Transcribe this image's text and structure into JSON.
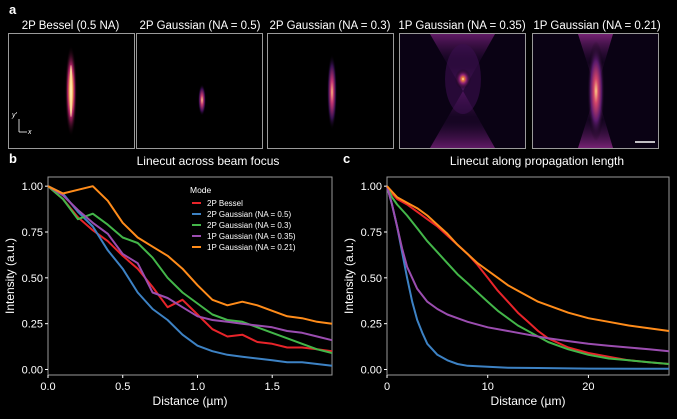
{
  "panel_labels": {
    "a": "a",
    "b": "b",
    "c": "c"
  },
  "images": {
    "tiles": [
      {
        "title": "2P Bessel (0.5 NA)",
        "profile": "bessel"
      },
      {
        "title": "2P Gaussian (NA = 0.5)",
        "profile": "gauss-small"
      },
      {
        "title": "2P Gaussian (NA = 0.3)",
        "profile": "gauss-med"
      },
      {
        "title": "1P Gaussian (NA = 0.35)",
        "profile": "1p-035"
      },
      {
        "title": "1P Gaussian (NA = 0.21)",
        "profile": "1p-021"
      }
    ],
    "axis_y": "y'",
    "axis_x": "x"
  },
  "colors": {
    "2P Bessel": "#e8242a",
    "2P Gaussian (NA = 0.5)": "#3d82c4",
    "2P Gaussian (NA = 0.3)": "#43b649",
    "1P Gaussian (NA = 0.35)": "#9b4db0",
    "1P Gaussian (NA = 0.21)": "#ff8c1a"
  },
  "chart_data": [
    {
      "id": "b",
      "type": "line",
      "title": "Linecut across beam focus",
      "xlabel": "Distance (µm)",
      "ylabel": "Intensity (a.u.)",
      "xlim": [
        0,
        1.9
      ],
      "ylim": [
        -0.03,
        1.05
      ],
      "xticks": [
        0,
        0.5,
        1.0,
        1.5
      ],
      "xtick_labels": [
        "0.0",
        "0.5",
        "1.0",
        "1.5"
      ],
      "yticks": [
        0,
        0.25,
        0.5,
        0.75,
        1.0
      ],
      "ytick_labels": [
        "0.00",
        "0.25",
        "0.50",
        "0.75",
        "1.00"
      ],
      "legend_title": "Mode",
      "legend_position": "top-right",
      "series": [
        {
          "name": "2P Bessel",
          "x": [
            0,
            0.1,
            0.2,
            0.3,
            0.4,
            0.5,
            0.6,
            0.7,
            0.8,
            0.9,
            1.0,
            1.1,
            1.2,
            1.3,
            1.4,
            1.5,
            1.6,
            1.7,
            1.8,
            1.9
          ],
          "y": [
            1.0,
            0.93,
            0.83,
            0.76,
            0.7,
            0.62,
            0.55,
            0.45,
            0.34,
            0.38,
            0.3,
            0.22,
            0.18,
            0.19,
            0.15,
            0.14,
            0.12,
            0.12,
            0.11,
            0.1
          ]
        },
        {
          "name": "2P Gaussian (NA = 0.5)",
          "x": [
            0,
            0.1,
            0.2,
            0.3,
            0.4,
            0.5,
            0.6,
            0.7,
            0.8,
            0.9,
            1.0,
            1.1,
            1.2,
            1.3,
            1.4,
            1.5,
            1.6,
            1.7,
            1.8,
            1.9
          ],
          "y": [
            1.0,
            0.96,
            0.86,
            0.78,
            0.65,
            0.55,
            0.42,
            0.33,
            0.27,
            0.19,
            0.13,
            0.1,
            0.08,
            0.07,
            0.06,
            0.05,
            0.04,
            0.04,
            0.03,
            0.02
          ]
        },
        {
          "name": "2P Gaussian (NA = 0.3)",
          "x": [
            0,
            0.1,
            0.2,
            0.3,
            0.4,
            0.5,
            0.6,
            0.7,
            0.8,
            0.9,
            1.0,
            1.1,
            1.2,
            1.3,
            1.4,
            1.5,
            1.6,
            1.7,
            1.8,
            1.9
          ],
          "y": [
            1.0,
            0.93,
            0.82,
            0.85,
            0.79,
            0.72,
            0.69,
            0.61,
            0.5,
            0.42,
            0.36,
            0.3,
            0.27,
            0.26,
            0.23,
            0.2,
            0.17,
            0.14,
            0.11,
            0.09
          ]
        },
        {
          "name": "1P Gaussian (NA = 0.35)",
          "x": [
            0,
            0.1,
            0.2,
            0.3,
            0.4,
            0.5,
            0.6,
            0.7,
            0.8,
            0.9,
            1.0,
            1.1,
            1.2,
            1.3,
            1.4,
            1.5,
            1.6,
            1.7,
            1.8,
            1.9
          ],
          "y": [
            1.0,
            0.95,
            0.87,
            0.8,
            0.74,
            0.63,
            0.58,
            0.42,
            0.39,
            0.34,
            0.29,
            0.27,
            0.26,
            0.25,
            0.24,
            0.23,
            0.21,
            0.2,
            0.18,
            0.16
          ]
        },
        {
          "name": "1P Gaussian (NA = 0.21)",
          "x": [
            0,
            0.1,
            0.2,
            0.3,
            0.4,
            0.5,
            0.6,
            0.7,
            0.8,
            0.9,
            1.0,
            1.1,
            1.2,
            1.3,
            1.4,
            1.5,
            1.6,
            1.7,
            1.8,
            1.9
          ],
          "y": [
            1.0,
            0.96,
            0.98,
            1.0,
            0.92,
            0.8,
            0.72,
            0.67,
            0.62,
            0.55,
            0.46,
            0.38,
            0.35,
            0.37,
            0.35,
            0.32,
            0.29,
            0.28,
            0.26,
            0.25
          ]
        }
      ]
    },
    {
      "id": "c",
      "type": "line",
      "title": "Linecut along propagation length",
      "xlabel": "Distance (µm)",
      "ylabel": "Intensity (a.u.)",
      "xlim": [
        0,
        28
      ],
      "ylim": [
        -0.03,
        1.05
      ],
      "xticks": [
        0,
        10,
        20
      ],
      "xtick_labels": [
        "0",
        "10",
        "20"
      ],
      "yticks": [
        0,
        0.25,
        0.5,
        0.75,
        1.0
      ],
      "ytick_labels": [
        "0.00",
        "0.25",
        "0.50",
        "0.75",
        "1.00"
      ],
      "series": [
        {
          "name": "2P Bessel",
          "x": [
            0,
            0.5,
            1,
            2,
            3,
            4,
            5,
            6,
            7,
            8,
            9,
            10,
            11,
            12,
            13,
            14,
            15,
            16,
            18,
            20,
            22,
            24,
            26,
            28
          ],
          "y": [
            1.0,
            0.96,
            0.93,
            0.9,
            0.86,
            0.82,
            0.78,
            0.73,
            0.68,
            0.63,
            0.57,
            0.5,
            0.43,
            0.37,
            0.31,
            0.26,
            0.21,
            0.17,
            0.12,
            0.09,
            0.07,
            0.05,
            0.04,
            0.03
          ]
        },
        {
          "name": "2P Gaussian (NA = 0.5)",
          "x": [
            0,
            0.5,
            1,
            1.5,
            2,
            2.5,
            3,
            3.5,
            4,
            5,
            6,
            7,
            8,
            10,
            12,
            15,
            20,
            25,
            28
          ],
          "y": [
            1.0,
            0.9,
            0.78,
            0.64,
            0.5,
            0.37,
            0.27,
            0.2,
            0.14,
            0.08,
            0.05,
            0.03,
            0.02,
            0.015,
            0.01,
            0.008,
            0.005,
            0.004,
            0.004
          ]
        },
        {
          "name": "2P Gaussian (NA = 0.3)",
          "x": [
            0,
            0.5,
            1,
            2,
            3,
            4,
            5,
            6,
            7,
            8,
            9,
            10,
            11,
            12,
            13,
            14,
            15,
            16,
            18,
            20,
            22,
            24,
            26,
            28
          ],
          "y": [
            1.0,
            0.94,
            0.9,
            0.84,
            0.77,
            0.7,
            0.64,
            0.58,
            0.52,
            0.47,
            0.42,
            0.37,
            0.32,
            0.28,
            0.24,
            0.21,
            0.18,
            0.15,
            0.11,
            0.08,
            0.06,
            0.05,
            0.04,
            0.03
          ]
        },
        {
          "name": "1P Gaussian (NA = 0.35)",
          "x": [
            0,
            0.5,
            1,
            1.5,
            2,
            3,
            4,
            5,
            6,
            7,
            8,
            10,
            12,
            14,
            16,
            18,
            20,
            22,
            24,
            26,
            28
          ],
          "y": [
            1.0,
            0.9,
            0.78,
            0.66,
            0.56,
            0.44,
            0.37,
            0.33,
            0.3,
            0.28,
            0.26,
            0.23,
            0.21,
            0.19,
            0.17,
            0.155,
            0.14,
            0.13,
            0.12,
            0.11,
            0.1
          ]
        },
        {
          "name": "1P Gaussian (NA = 0.21)",
          "x": [
            0,
            0.5,
            1,
            2,
            3,
            4,
            5,
            6,
            7,
            8,
            9,
            10,
            11,
            12,
            13,
            14,
            15,
            16,
            18,
            20,
            22,
            24,
            26,
            28
          ],
          "y": [
            1.0,
            0.97,
            0.94,
            0.91,
            0.88,
            0.84,
            0.79,
            0.74,
            0.68,
            0.63,
            0.58,
            0.54,
            0.5,
            0.46,
            0.43,
            0.4,
            0.37,
            0.35,
            0.31,
            0.28,
            0.26,
            0.24,
            0.225,
            0.21
          ]
        }
      ]
    }
  ]
}
